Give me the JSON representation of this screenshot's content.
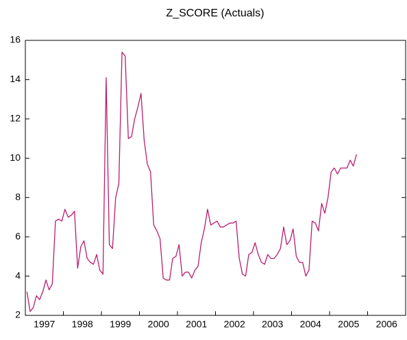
{
  "chart_data": {
    "type": "line",
    "title": "Z_SCORE (Actuals)",
    "categories": [
      "1997",
      null,
      null,
      null,
      null,
      null,
      null,
      null,
      null,
      null,
      null,
      null,
      "1998",
      null,
      null,
      null,
      null,
      null,
      null,
      null,
      null,
      null,
      null,
      null,
      "1999",
      null,
      null,
      null,
      null,
      null,
      null,
      null,
      null,
      null,
      null,
      null,
      "2000",
      null,
      null,
      null,
      null,
      null,
      null,
      null,
      null,
      null,
      null,
      null,
      "2001",
      null,
      null,
      null,
      null,
      null,
      null,
      null,
      null,
      null,
      null,
      null,
      "2002",
      null,
      null,
      null,
      null,
      null,
      null,
      null,
      null,
      null,
      null,
      null,
      "2003",
      null,
      null,
      null,
      null,
      null,
      null,
      null,
      null,
      null,
      null,
      null,
      "2004",
      null,
      null,
      null,
      null,
      null,
      null,
      null,
      null,
      null,
      null,
      null,
      "2005",
      null,
      null,
      null,
      null,
      null,
      null,
      null,
      null,
      null,
      null,
      null,
      "2006",
      null,
      null,
      null,
      null,
      null,
      null,
      null,
      null,
      null,
      null,
      null
    ],
    "series": [
      {
        "name": "Z_SCORE",
        "color": "#b81c6c",
        "values": [
          3.2,
          2.2,
          2.4,
          3.0,
          2.8,
          3.2,
          3.8,
          3.3,
          3.6,
          6.8,
          6.9,
          6.8,
          7.4,
          7.0,
          7.1,
          7.3,
          4.4,
          5.5,
          5.8,
          4.9,
          4.7,
          4.6,
          5.1,
          4.3,
          4.1,
          14.1,
          5.6,
          5.4,
          8.0,
          8.7,
          15.4,
          15.2,
          11.0,
          11.1,
          12.0,
          12.6,
          13.3,
          10.9,
          9.7,
          9.3,
          6.6,
          6.3,
          5.9,
          3.9,
          3.8,
          3.8,
          4.9,
          5.0,
          5.6,
          4.0,
          4.2,
          4.2,
          3.9,
          4.3,
          4.5,
          5.7,
          6.4,
          7.4,
          6.6,
          6.7,
          6.8,
          6.5,
          6.5,
          6.6,
          6.7,
          6.7,
          6.8,
          4.9,
          4.1,
          4.0,
          5.1,
          5.2,
          5.7,
          5.1,
          4.7,
          4.6,
          5.1,
          4.9,
          4.9,
          5.1,
          5.4,
          6.5,
          5.6,
          5.8,
          6.4,
          5.0,
          4.7,
          4.7,
          4.0,
          4.3,
          6.8,
          6.7,
          6.3,
          7.7,
          7.2,
          8.0,
          9.3,
          9.5,
          9.2,
          9.5,
          9.5,
          9.5,
          9.9,
          9.6,
          10.2,
          null,
          null,
          null,
          null,
          null,
          null,
          null,
          null,
          null,
          null,
          null,
          null,
          null,
          null,
          null
        ]
      }
    ],
    "ylim": [
      2,
      16
    ],
    "yticks": [
      2,
      4,
      6,
      8,
      10,
      12,
      14,
      16
    ]
  }
}
